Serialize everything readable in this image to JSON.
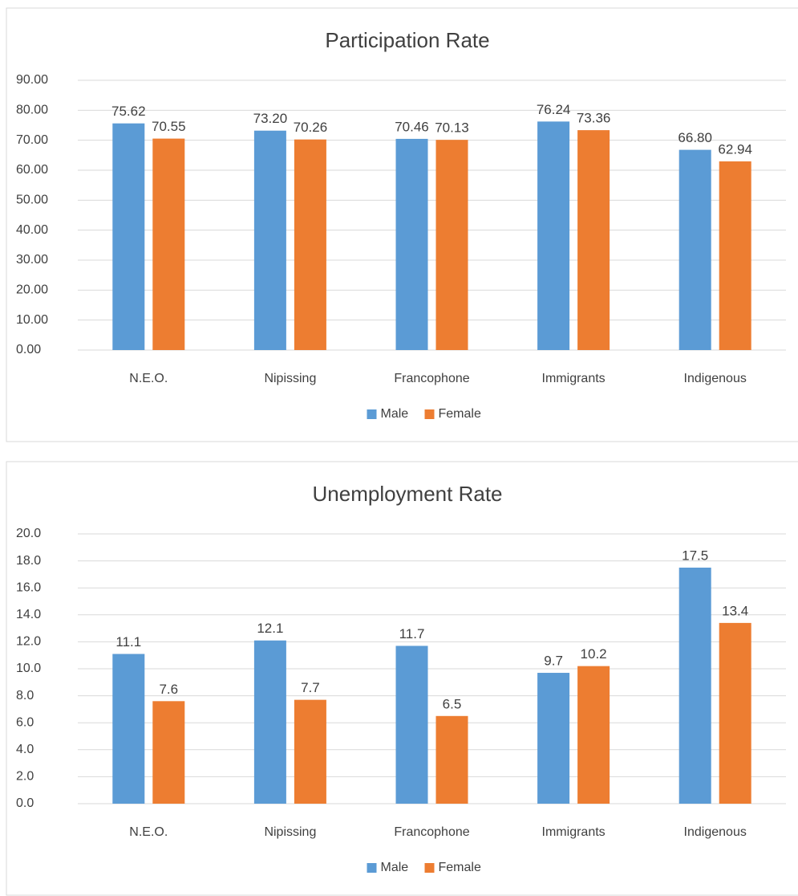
{
  "chart_data": [
    {
      "type": "bar",
      "title": "Participation Rate",
      "categories": [
        "N.E.O.",
        "Nipissing",
        "Francophone",
        "Immigrants",
        "Indigenous"
      ],
      "series": [
        {
          "name": "Male",
          "color": "#5b9bd5",
          "values": [
            75.62,
            73.2,
            70.46,
            76.24,
            66.8
          ],
          "value_labels": [
            "75.62",
            "73.20",
            "70.46",
            "76.24",
            "66.80"
          ]
        },
        {
          "name": "Female",
          "color": "#ed7d31",
          "values": [
            70.55,
            70.26,
            70.13,
            73.36,
            62.94
          ],
          "value_labels": [
            "70.55",
            "70.26",
            "70.13",
            "73.36",
            "62.94"
          ]
        }
      ],
      "ylim": [
        0,
        90
      ],
      "yticks": [
        {
          "value": 0,
          "label": "0.00"
        },
        {
          "value": 10,
          "label": "10.00"
        },
        {
          "value": 20,
          "label": "20.00"
        },
        {
          "value": 30,
          "label": "30.00"
        },
        {
          "value": 40,
          "label": "40.00"
        },
        {
          "value": 50,
          "label": "50.00"
        },
        {
          "value": 60,
          "label": "60.00"
        },
        {
          "value": 70,
          "label": "70.00"
        },
        {
          "value": 80,
          "label": "80.00"
        },
        {
          "value": 90,
          "label": "90.00"
        }
      ],
      "grid": true,
      "legend": "bottom"
    },
    {
      "type": "bar",
      "title": "Unemployment Rate",
      "categories": [
        "N.E.O.",
        "Nipissing",
        "Francophone",
        "Immigrants",
        "Indigenous"
      ],
      "series": [
        {
          "name": "Male",
          "color": "#5b9bd5",
          "values": [
            11.1,
            12.1,
            11.7,
            9.7,
            17.5
          ]
        },
        {
          "name": "Female",
          "color": "#ed7d31",
          "values": [
            7.6,
            7.7,
            6.5,
            10.2,
            13.4
          ]
        }
      ],
      "ylim": [
        0,
        20
      ],
      "yticks": [
        {
          "value": 0,
          "label": "0.0"
        },
        {
          "value": 2,
          "label": "2.0"
        },
        {
          "value": 4,
          "label": "4.0"
        },
        {
          "value": 6,
          "label": "6.0"
        },
        {
          "value": 8,
          "label": "8.0"
        },
        {
          "value": 10,
          "label": "10.0"
        },
        {
          "value": 12,
          "label": "12.0"
        },
        {
          "value": 14,
          "label": "14.0"
        },
        {
          "value": 16,
          "label": "16.0"
        },
        {
          "value": 18,
          "label": "18.0"
        },
        {
          "value": 20,
          "label": "20.0"
        }
      ],
      "grid": true,
      "legend": "bottom"
    }
  ]
}
